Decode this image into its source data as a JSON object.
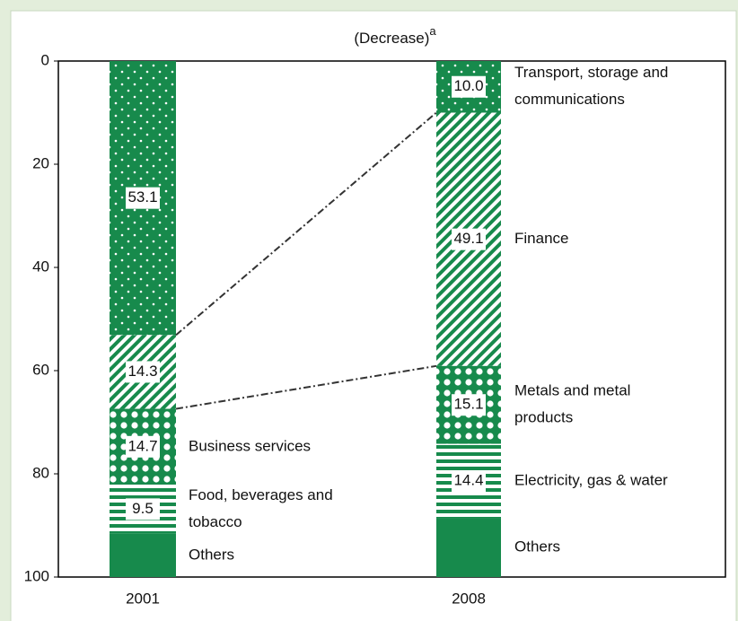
{
  "chart_data": {
    "type": "stacked_bar",
    "title": "(Decrease)",
    "title_superscript": "a",
    "ylim": [
      0,
      100
    ],
    "yticks": [
      0,
      20,
      40,
      60,
      80,
      100
    ],
    "y_inverted": true,
    "color": "#178a4c",
    "categories": [
      "2001",
      "2008"
    ],
    "bars": [
      {
        "segments": [
          {
            "value": 53.1,
            "pattern": "dots"
          },
          {
            "value": 14.3,
            "pattern": "diagonal"
          },
          {
            "value": 14.7,
            "pattern": "circles",
            "name": [
              "Business services"
            ]
          },
          {
            "value": 9.5,
            "pattern": "hstripes",
            "name": [
              "Food, beverages and",
              "tobacco"
            ]
          },
          {
            "value": 8.4,
            "pattern": "solid",
            "name": [
              "Others"
            ]
          }
        ]
      },
      {
        "segments": [
          {
            "value": 10,
            "value_label": "10.0",
            "pattern": "dots",
            "name": [
              "Transport, storage and",
              "communications"
            ]
          },
          {
            "value": 49.1,
            "pattern": "diagonal",
            "name": [
              "Finance"
            ]
          },
          {
            "value": 15.1,
            "pattern": "circles",
            "name": [
              "Metals and metal",
              "products"
            ]
          },
          {
            "value": 14.4,
            "pattern": "hstripes",
            "name": [
              "Electricity, gas & water"
            ]
          },
          {
            "value": 11.4,
            "pattern": "solid",
            "name": [
              "Others"
            ]
          }
        ]
      }
    ]
  }
}
